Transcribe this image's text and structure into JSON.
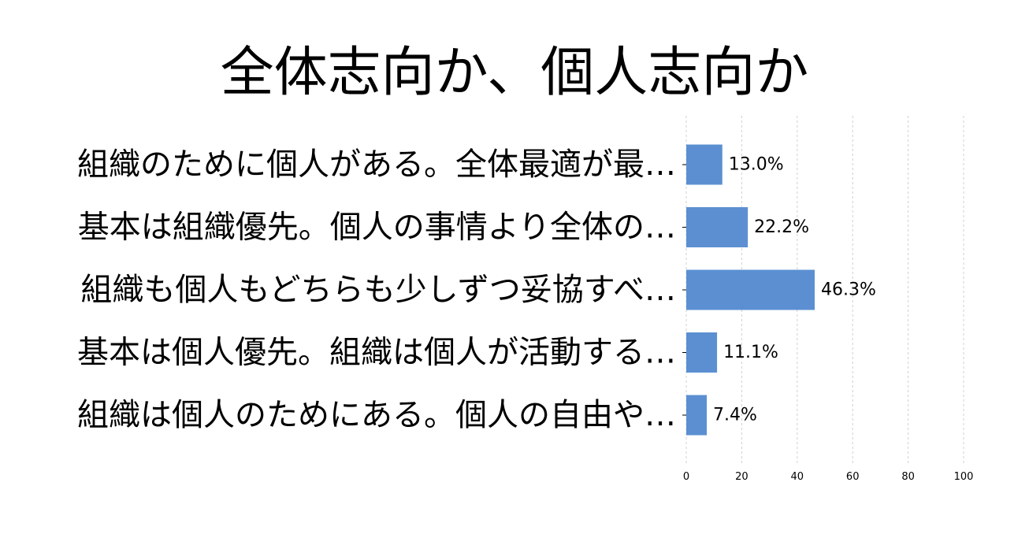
{
  "chart_data": {
    "type": "bar",
    "orientation": "horizontal",
    "title": "全体志向か、個人志向か",
    "xlabel": "",
    "ylabel": "",
    "categories": [
      "組織のために個人がある。全体最適が最…",
      "基本は組織優先。個人の事情より全体の…",
      "組織も個人もどちらも少しずつ妥協すべ…",
      "基本は個人優先。組織は個人が活動する…",
      "組織は個人のためにある。個人の自由や…"
    ],
    "values": [
      13.0,
      22.2,
      46.3,
      11.1,
      7.4
    ],
    "value_labels": [
      "13.0%",
      "22.2%",
      "46.3%",
      "11.1%",
      "7.4%"
    ],
    "xlim": [
      0,
      100
    ],
    "xticks": [
      0,
      20,
      40,
      60,
      80,
      100
    ],
    "xtick_labels": [
      "0",
      "20",
      "40",
      "60",
      "80",
      "100"
    ],
    "grid": "vertical dashed",
    "legend": "none",
    "bar_color": "#5b8fd1",
    "grid_color": "#d0d0d0"
  }
}
